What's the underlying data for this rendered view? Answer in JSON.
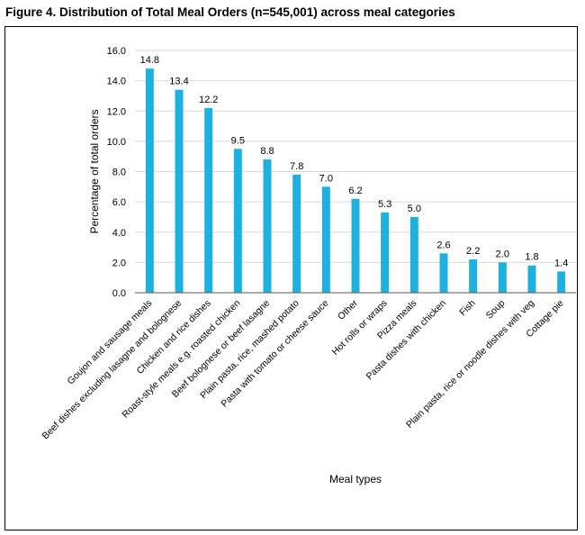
{
  "figure_title": "Figure 4. Distribution of Total Meal Orders (n=545,001) across meal categories",
  "colors": {
    "bar": "#1EB1E0",
    "grid": "#d9d9d9",
    "axis": "#595959"
  },
  "chart_data": {
    "type": "bar",
    "title": "",
    "xlabel": "Meal types",
    "ylabel": "Percentage of total orders",
    "ylim": [
      0,
      16
    ],
    "yticks": [
      "0.0",
      "2.0",
      "4.0",
      "6.0",
      "8.0",
      "10.0",
      "12.0",
      "14.0",
      "16.0"
    ],
    "grid": true,
    "categories": [
      "Goujon and sausage meals",
      "Beef dishes excluding lasagne and bolognese",
      "Chicken and rice dishes",
      "Roast-style meals e.g. roasted chicken",
      "Beef bolognese or beef lasagne",
      "Plain pasta, rice, mashed potato",
      "Pasta with tomato or cheese sauce",
      "Other",
      "Hot rolls or wraps",
      "Pizza meals",
      "Pasta dishes with chicken",
      "Fish",
      "Soup",
      "Plain pasta, rice or noodle dishes with veg",
      "Cottage pie"
    ],
    "values": [
      14.8,
      13.4,
      12.2,
      9.5,
      8.8,
      7.8,
      7.0,
      6.2,
      5.3,
      5.0,
      2.6,
      2.2,
      2.0,
      1.8,
      1.4
    ],
    "data_labels": [
      "14.8",
      "13.4",
      "12.2",
      "9.5",
      "8.8",
      "7.8",
      "7.0",
      "6.2",
      "5.3",
      "5.0",
      "2.6",
      "2.2",
      "2.0",
      "1.8",
      "1.4"
    ]
  }
}
